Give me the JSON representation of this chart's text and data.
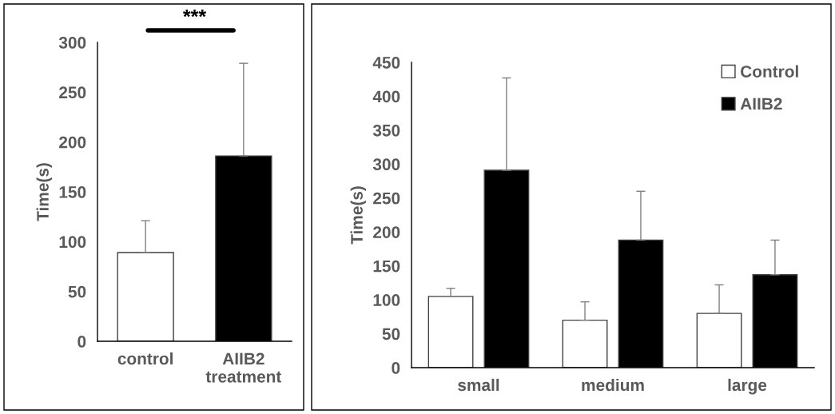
{
  "chart_data": [
    {
      "type": "bar",
      "categories": [
        "control",
        "AIIB2\ntreatment"
      ],
      "ylabel": "Time(s)",
      "ylim": [
        0,
        300
      ],
      "yticks": [
        0,
        50,
        100,
        150,
        200,
        250,
        300
      ],
      "series": [
        {
          "values": [
            89,
            186
          ],
          "colors": [
            "#ffffff",
            "#000000"
          ],
          "errors": [
            [
              89,
              121
            ],
            [
              186,
              279
            ]
          ]
        }
      ],
      "annotations": [
        "***"
      ],
      "grid": false,
      "legend": false
    },
    {
      "type": "bar",
      "categories": [
        "small",
        "medium",
        "large"
      ],
      "ylabel": "Time(s)",
      "ylim": [
        0,
        450
      ],
      "yticks": [
        0,
        50,
        100,
        150,
        200,
        250,
        300,
        350,
        400,
        450
      ],
      "series": [
        {
          "name": "Control",
          "color": "#ffffff",
          "values": [
            105,
            70,
            80
          ],
          "errors": [
            [
              105,
              117
            ],
            [
              70,
              97
            ],
            [
              80,
              122
            ]
          ]
        },
        {
          "name": "AIIB2",
          "color": "#000000",
          "values": [
            291,
            188,
            137
          ],
          "errors": [
            [
              291,
              427
            ],
            [
              188,
              260
            ],
            [
              137,
              188
            ]
          ]
        }
      ],
      "grid": false,
      "legend": "top right"
    }
  ]
}
